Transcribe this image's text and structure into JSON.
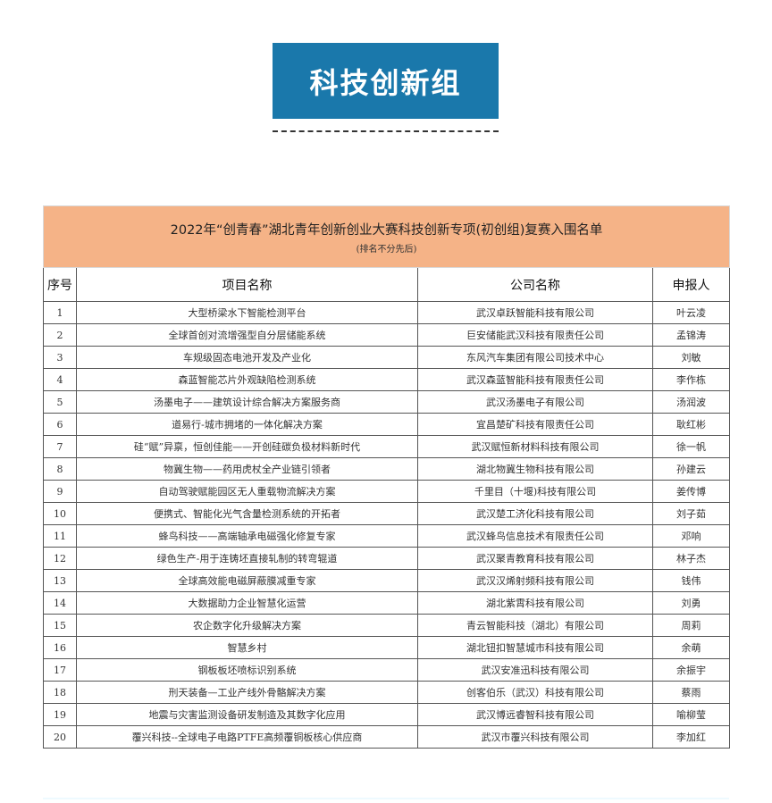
{
  "banner": {
    "title": "科技创新组"
  },
  "table": {
    "title": "2022年“创青春”湖北青年创新创业大赛科技创新专项(初创组)复赛入围名单",
    "subtitle": "(排名不分先后)",
    "headers": [
      "序号",
      "项目名称",
      "公司名称",
      "申报人"
    ],
    "rows": [
      [
        "1",
        "大型桥梁水下智能检测平台",
        "武汉卓跃智能科技有限公司",
        "叶云凌"
      ],
      [
        "2",
        "全球首创对流增强型自分层储能系统",
        "巨安储能武汉科技有限责任公司",
        "孟锦涛"
      ],
      [
        "3",
        "车规级固态电池开发及产业化",
        "东风汽车集团有限公司技术中心",
        "刘敏"
      ],
      [
        "4",
        "森蓝智能芯片外观缺陷检测系统",
        "武汉森蓝智能科技有限责任公司",
        "李作栋"
      ],
      [
        "5",
        "汤墨电子——建筑设计综合解决方案服务商",
        "武汉汤墨电子有限公司",
        "汤润波"
      ],
      [
        "6",
        "道易行-城市拥堵的一体化解决方案",
        "宜昌楚矿科技有限责任公司",
        "耿红彬"
      ],
      [
        "7",
        "硅“赋”异禀，恒创佳能——开创硅碳负极材料新时代",
        "武汉赋恒新材料科技有限公司",
        "徐一帆"
      ],
      [
        "8",
        "物冀生物——药用虎杖全产业链引领者",
        "湖北物冀生物科技有限公司",
        "孙建云"
      ],
      [
        "9",
        "自动驾驶赋能园区无人重载物流解决方案",
        "千里目（十堰)科技有限公司",
        "姜传博"
      ],
      [
        "10",
        "便携式、智能化光气含量检测系统的开拓者",
        "武汉楚工济化科技有限公司",
        "刘子茹"
      ],
      [
        "11",
        "蜂鸟科技——高端轴承电磁强化修复专家",
        "武汉蜂鸟信息技术有限责任公司",
        "邓响"
      ],
      [
        "12",
        "绿色生产-用于连铸坯直接轧制的转弯辊道",
        "武汉聚青教育科技有限公司",
        "林子杰"
      ],
      [
        "13",
        "全球高效能电磁屏蔽膜减重专家",
        "武汉汉烯射频科技有限公司",
        "钱伟"
      ],
      [
        "14",
        "大数据助力企业智慧化运营",
        "湖北紫霄科技有限公司",
        "刘勇"
      ],
      [
        "15",
        "农企数字化升级解决方案",
        "青云智能科技（湖北）有限公司",
        "周莉"
      ],
      [
        "16",
        "智慧乡村",
        "湖北钮扣智慧城市科技有限公司",
        "余萌"
      ],
      [
        "17",
        "钢板板坯喷标识别系统",
        "武汉安准迅科技有限公司",
        "余振宇"
      ],
      [
        "18",
        "刑天装备—工业产线外骨骼解决方案",
        "创客伯乐（武汉）科技有限公司",
        "蔡雨"
      ],
      [
        "19",
        "地震与灾害监测设备研发制造及其数字化应用",
        "武汉博远睿智科技有限公司",
        "喻柳莹"
      ],
      [
        "20",
        "覆兴科技--全球电子电路PTFE高频覆铜板核心供应商",
        "武汉市覆兴科技有限公司",
        "李加红"
      ]
    ]
  },
  "colors": {
    "banner": "#1a78ab",
    "title_band": "#f5b387"
  }
}
